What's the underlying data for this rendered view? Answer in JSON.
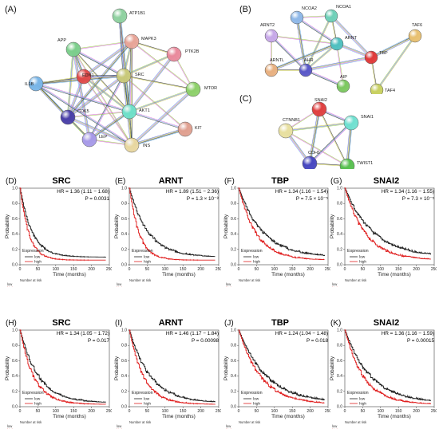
{
  "networks": [
    {
      "letter": "(A)",
      "nodes": [
        {
          "label": "ATP1B1",
          "color": "#8fd1a0"
        },
        {
          "label": "APP",
          "color": "#7ccf8c"
        },
        {
          "label": "MAPK3",
          "color": "#e8a598"
        },
        {
          "label": "PTK2B",
          "color": "#e98a9c"
        },
        {
          "label": "SRC",
          "color": "#c9c97a"
        },
        {
          "label": "EDN1",
          "color": "#e04a4a"
        },
        {
          "label": "IL1B",
          "color": "#79b6e8"
        },
        {
          "label": "MTOR",
          "color": "#8dd06a"
        },
        {
          "label": "AKT1",
          "color": "#6ee0c9"
        },
        {
          "label": "CDK5",
          "color": "#4a3fa8"
        },
        {
          "label": "KIT",
          "color": "#e0a090"
        },
        {
          "label": "LEP",
          "color": "#a79ae8"
        },
        {
          "label": "INS",
          "color": "#e8d7a0"
        }
      ]
    },
    {
      "letter": "(B)",
      "nodes": [
        {
          "label": "NCOA2",
          "color": "#8fb8e8"
        },
        {
          "label": "NCOA1",
          "color": "#6fd0b8"
        },
        {
          "label": "ARNT2",
          "color": "#c7a8e8"
        },
        {
          "label": "TAF6",
          "color": "#e8c070"
        },
        {
          "label": "ARNT",
          "color": "#4fc0c0"
        },
        {
          "label": "TBP",
          "color": "#e03a3a"
        },
        {
          "label": "ARNTL",
          "color": "#e8b080"
        },
        {
          "label": "AHR",
          "color": "#5a58c8"
        },
        {
          "label": "AIP",
          "color": "#7cc860"
        },
        {
          "label": "TAF4",
          "color": "#c8d060"
        }
      ]
    },
    {
      "letter": "(C)",
      "nodes": [
        {
          "label": "SNAI2",
          "color": "#e04040"
        },
        {
          "label": "CTNNB1",
          "color": "#e8e0a0"
        },
        {
          "label": "SNAI1",
          "color": "#70e0d0"
        },
        {
          "label": "CDH1",
          "color": "#4848c0"
        },
        {
          "label": "TWIST1",
          "color": "#58c050"
        }
      ]
    }
  ],
  "km_panels": [
    {
      "letter": "(D)",
      "gene": "SRC",
      "hr": "HR = 1.36 (1.11 − 1.68)",
      "p": "P = 0.0031"
    },
    {
      "letter": "(E)",
      "gene": "ARNT",
      "hr": "HR = 1.89 (1.51 − 2.36)",
      "p": "P = 1.3 × 10⁻⁸"
    },
    {
      "letter": "(F)",
      "gene": "TBP",
      "hr": "HR = 1.34 (1.16 − 1.54)",
      "p": "P = 7.5 × 10⁻⁵"
    },
    {
      "letter": "(G)",
      "gene": "SNAI2",
      "hr": "HR = 1.34 (1.16 − 1.55)",
      "p": "P = 7.3 × 10⁻⁵"
    },
    {
      "letter": "(H)",
      "gene": "SRC",
      "hr": "HR = 1.34 (1.05 − 1.72)",
      "p": "P = 0.017"
    },
    {
      "letter": "(I)",
      "gene": "ARNT",
      "hr": "HR = 1.46 (1.17 − 1.84)",
      "p": "P = 0.00098"
    },
    {
      "letter": "(J)",
      "gene": "TBP",
      "hr": "HR = 1.24 (1.04 − 1.48)",
      "p": "P = 0.018"
    },
    {
      "letter": "(K)",
      "gene": "SNAI2",
      "hr": "HR = 1.36 (1.16 − 1.59)",
      "p": "P = 0.00015"
    }
  ],
  "km_common": {
    "ylabel": "Probability",
    "xlabel": "Time (months)",
    "yticks": [
      "0.0",
      "0.2",
      "0.4",
      "0.6",
      "0.8",
      "1.0"
    ],
    "xticks": [
      "0",
      "50",
      "100",
      "150",
      "200",
      "250"
    ],
    "legend_title": "Expression",
    "legend_low": "low",
    "legend_high": "high",
    "risk_title": "Number at risk",
    "risk_low": "low",
    "risk_high": "high",
    "low_color": "#222222",
    "high_color": "#e02020"
  }
}
